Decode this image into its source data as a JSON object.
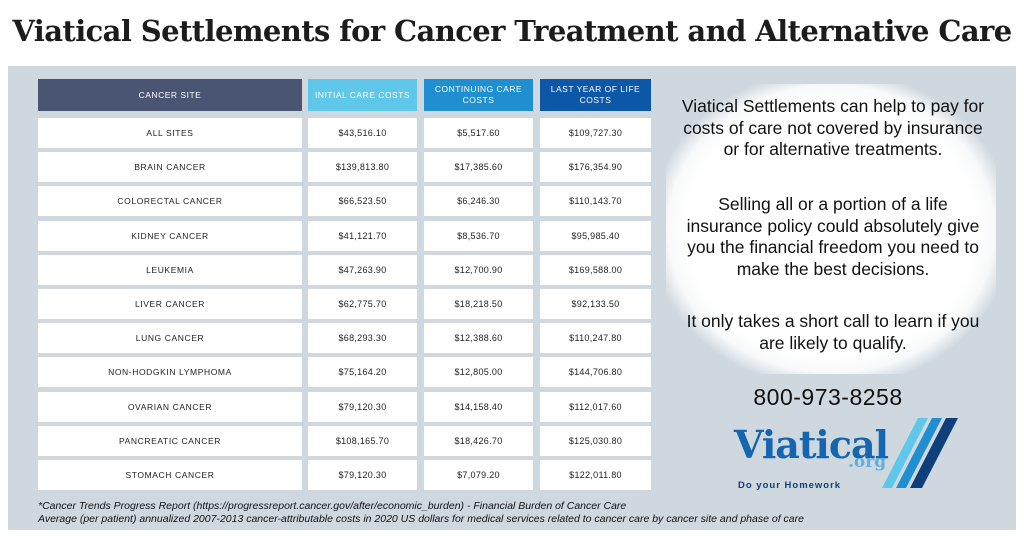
{
  "title": "Viatical Settlements for Cancer Treatment and Alternative Care",
  "table": {
    "headers": [
      "CANCER SITE",
      "INITIAL CARE COSTS",
      "CONTINUING CARE COSTS",
      "LAST YEAR OF LIFE COSTS"
    ],
    "header_colors": [
      "#4a5573",
      "#5ec7ea",
      "#1f8fd1",
      "#0d57a8"
    ],
    "rows": [
      [
        "ALL SITES",
        "$43,516.10",
        "$5,517.60",
        "$109,727.30"
      ],
      [
        "BRAIN CANCER",
        "$139,813.80",
        "$17,385.60",
        "$176,354.90"
      ],
      [
        "COLORECTAL CANCER",
        "$66,523.50",
        "$6,246.30",
        "$110,143.70"
      ],
      [
        "KIDNEY CANCER",
        "$41,121.70",
        "$8,536.70",
        "$95,985.40"
      ],
      [
        "LEUKEMIA",
        "$47,263.90",
        "$12,700.90",
        "$169,588.00"
      ],
      [
        "LIVER CANCER",
        "$62,775.70",
        "$18,218.50",
        "$92,133.50"
      ],
      [
        "LUNG CANCER",
        "$68,293.30",
        "$12,388.60",
        "$110,247.80"
      ],
      [
        "NON-HODGKIN LYMPHOMA",
        "$75,164.20",
        "$12,805.00",
        "$144,706.80"
      ],
      [
        "OVARIAN CANCER",
        "$79,120.30",
        "$14,158.40",
        "$112,017.60"
      ],
      [
        "PANCREATIC CANCER",
        "$108,165.70",
        "$18,426.70",
        "$125,030.80"
      ],
      [
        "STOMACH CANCER",
        "$79,120.30",
        "$7,079.20",
        "$122,011.80"
      ]
    ]
  },
  "message": {
    "p1": "Viatical Settlements can help to pay for costs of care not covered by insurance or for alternative treatments.",
    "p2": "Selling all or a portion of a life insurance policy could absolutely give you the financial freedom you need to make the best decisions.",
    "p3": "It only takes a short call to learn if you are likely to qualify."
  },
  "phone": "800-973-8258",
  "logo": {
    "word": "Viatical",
    "org": ".org",
    "tagline": "Do your Homework",
    "colors": [
      "#1565b0",
      "#5fb0e0",
      "#0f3f7a"
    ]
  },
  "footnote": {
    "line1": "*Cancer Trends Progress Report (https://progressreport.cancer.gov/after/economic_burden) - Financial Burden of Cancer Care",
    "line2": "Average (per patient) annualized 2007-2013 cancer-attributable costs in 2020 US dollars for medical services related to cancer care by cancer site and phase of care"
  }
}
